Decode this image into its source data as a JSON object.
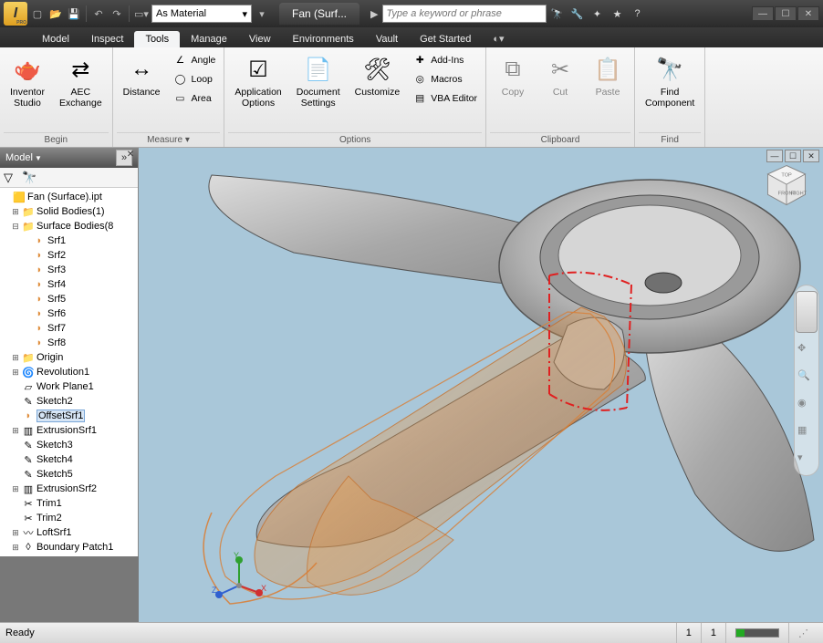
{
  "titlebar": {
    "material_dropdown": "As Material",
    "doc_title": "Fan (Surf...",
    "search_placeholder": "Type a keyword or phrase"
  },
  "menutabs": [
    "Model",
    "Inspect",
    "Tools",
    "Manage",
    "View",
    "Environments",
    "Vault",
    "Get Started"
  ],
  "menutab_active": 2,
  "ribbon": {
    "panels": [
      {
        "title": "Begin",
        "big": [
          {
            "k": "inventor_studio",
            "label": "Inventor\nStudio"
          },
          {
            "k": "aec_exchange",
            "label": "AEC\nExchange"
          }
        ],
        "mini": []
      },
      {
        "title": "Measure ▾",
        "big": [
          {
            "k": "distance",
            "label": "Distance"
          }
        ],
        "mini": [
          {
            "k": "angle",
            "label": "Angle"
          },
          {
            "k": "loop",
            "label": "Loop"
          },
          {
            "k": "area",
            "label": "Area"
          }
        ]
      },
      {
        "title": "Options",
        "big": [
          {
            "k": "app_options",
            "label": "Application\nOptions"
          },
          {
            "k": "doc_settings",
            "label": "Document\nSettings"
          },
          {
            "k": "customize",
            "label": "Customize"
          }
        ],
        "mini": [
          {
            "k": "addins",
            "label": "Add-Ins"
          },
          {
            "k": "macros",
            "label": "Macros"
          },
          {
            "k": "vba",
            "label": "VBA Editor"
          }
        ]
      },
      {
        "title": "Clipboard",
        "big": [
          {
            "k": "copy",
            "label": "Copy",
            "disabled": true
          },
          {
            "k": "cut",
            "label": "Cut",
            "disabled": true
          },
          {
            "k": "paste",
            "label": "Paste",
            "disabled": true
          }
        ],
        "mini": []
      },
      {
        "title": "Find",
        "big": [
          {
            "k": "find_comp",
            "label": "Find\nComponent"
          }
        ],
        "mini": []
      }
    ]
  },
  "browser": {
    "header": "Model",
    "tree": [
      {
        "exp": "",
        "ind": 0,
        "ico": "part",
        "label": "Fan (Surface).ipt"
      },
      {
        "exp": "+",
        "ind": 1,
        "ico": "folder",
        "label": "Solid Bodies(1)"
      },
      {
        "exp": "−",
        "ind": 1,
        "ico": "folder",
        "label": "Surface Bodies(8"
      },
      {
        "exp": "",
        "ind": 2,
        "ico": "srf",
        "label": "Srf1"
      },
      {
        "exp": "",
        "ind": 2,
        "ico": "srf",
        "label": "Srf2"
      },
      {
        "exp": "",
        "ind": 2,
        "ico": "srf",
        "label": "Srf3"
      },
      {
        "exp": "",
        "ind": 2,
        "ico": "srf",
        "label": "Srf4"
      },
      {
        "exp": "",
        "ind": 2,
        "ico": "srf",
        "label": "Srf5"
      },
      {
        "exp": "",
        "ind": 2,
        "ico": "srf",
        "label": "Srf6"
      },
      {
        "exp": "",
        "ind": 2,
        "ico": "srf",
        "label": "Srf7"
      },
      {
        "exp": "",
        "ind": 2,
        "ico": "srf",
        "label": "Srf8"
      },
      {
        "exp": "+",
        "ind": 1,
        "ico": "folder",
        "label": "Origin"
      },
      {
        "exp": "+",
        "ind": 1,
        "ico": "rev",
        "label": "Revolution1"
      },
      {
        "exp": "",
        "ind": 1,
        "ico": "plane",
        "label": "Work Plane1"
      },
      {
        "exp": "",
        "ind": 1,
        "ico": "sketch",
        "label": "Sketch2"
      },
      {
        "exp": "",
        "ind": 1,
        "ico": "offset",
        "label": "OffsetSrf1",
        "sel": true
      },
      {
        "exp": "+",
        "ind": 1,
        "ico": "ext",
        "label": "ExtrusionSrf1"
      },
      {
        "exp": "",
        "ind": 1,
        "ico": "sketch",
        "label": "Sketch3"
      },
      {
        "exp": "",
        "ind": 1,
        "ico": "sketch",
        "label": "Sketch4"
      },
      {
        "exp": "",
        "ind": 1,
        "ico": "sketch",
        "label": "Sketch5"
      },
      {
        "exp": "+",
        "ind": 1,
        "ico": "ext",
        "label": "ExtrusionSrf2"
      },
      {
        "exp": "",
        "ind": 1,
        "ico": "trim",
        "label": "Trim1"
      },
      {
        "exp": "",
        "ind": 1,
        "ico": "trim",
        "label": "Trim2"
      },
      {
        "exp": "+",
        "ind": 1,
        "ico": "loft",
        "label": "LoftSrf1"
      },
      {
        "exp": "+",
        "ind": 1,
        "ico": "bnd",
        "label": "Boundary Patch1"
      }
    ]
  },
  "viewport": {
    "bg": "#A9C7D9",
    "hub_fill": "#b8b8b8",
    "hub_stroke": "#555",
    "blade_fill": "#b0b0b0",
    "blade_hi": "#d8d8d8",
    "surf_fill": "rgba(232,150,70,0.35)",
    "surf_stroke": "#c87028",
    "dash_stroke": "#e02020",
    "triad": {
      "x": "#d03030",
      "y": "#30a030",
      "z": "#3060d0"
    }
  },
  "status": {
    "ready": "Ready",
    "n1": "1",
    "n2": "1"
  }
}
